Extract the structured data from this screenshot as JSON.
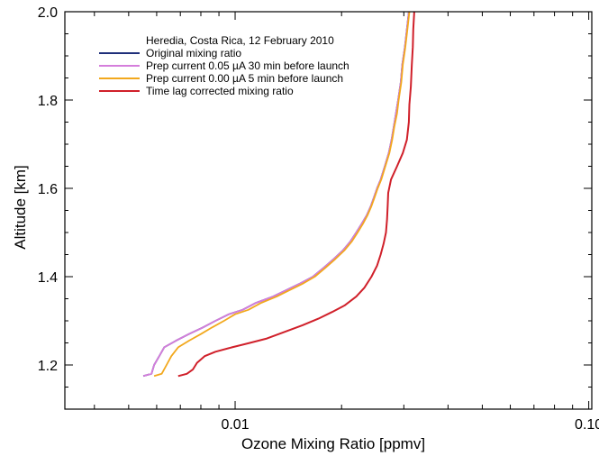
{
  "chart_data": {
    "type": "line",
    "title": "",
    "legend_title": "Heredia, Costa Rica, 12 February 2010",
    "xlabel": "Ozone Mixing Ratio [ppmv]",
    "ylabel": "Altitude [km]",
    "x_scale": "log",
    "xlim": [
      0.0033,
      0.102
    ],
    "ylim": [
      1.1,
      2.0
    ],
    "x_ticks": [
      {
        "value": 0.01,
        "label": "0.01"
      },
      {
        "value": 0.1,
        "label": "0.10"
      }
    ],
    "y_ticks": [
      {
        "value": 1.2,
        "label": "1.2"
      },
      {
        "value": 1.4,
        "label": "1.4"
      },
      {
        "value": 1.6,
        "label": "1.6"
      },
      {
        "value": 1.8,
        "label": "1.8"
      },
      {
        "value": 2.0,
        "label": "2.0"
      }
    ],
    "grid": false,
    "legend_position": "top-left",
    "series": [
      {
        "name": "Original mixing ratio",
        "color": "#1f2f7a",
        "points": [
          [
            0.0055,
            1.175
          ],
          [
            0.0058,
            1.18
          ],
          [
            0.0059,
            1.2
          ],
          [
            0.0061,
            1.22
          ],
          [
            0.0063,
            1.24
          ],
          [
            0.0068,
            1.255
          ],
          [
            0.0074,
            1.27
          ],
          [
            0.0081,
            1.285
          ],
          [
            0.0088,
            1.3
          ],
          [
            0.0096,
            1.315
          ],
          [
            0.0105,
            1.325
          ],
          [
            0.0114,
            1.34
          ],
          [
            0.0128,
            1.355
          ],
          [
            0.014,
            1.37
          ],
          [
            0.0153,
            1.385
          ],
          [
            0.0166,
            1.4
          ],
          [
            0.0178,
            1.42
          ],
          [
            0.019,
            1.44
          ],
          [
            0.0202,
            1.46
          ],
          [
            0.0212,
            1.48
          ],
          [
            0.022,
            1.5
          ],
          [
            0.0228,
            1.52
          ],
          [
            0.0236,
            1.54
          ],
          [
            0.0242,
            1.56
          ],
          [
            0.0247,
            1.58
          ],
          [
            0.0252,
            1.6
          ],
          [
            0.0258,
            1.62
          ],
          [
            0.0265,
            1.65
          ],
          [
            0.0272,
            1.68
          ],
          [
            0.0277,
            1.71
          ],
          [
            0.0281,
            1.74
          ],
          [
            0.0285,
            1.77
          ],
          [
            0.0289,
            1.8
          ],
          [
            0.0294,
            1.84
          ],
          [
            0.0297,
            1.88
          ],
          [
            0.0302,
            1.92
          ],
          [
            0.0306,
            1.96
          ],
          [
            0.031,
            2.0
          ]
        ]
      },
      {
        "name": "Prep current 0.05 µA 30 min before launch",
        "color": "#d57edc",
        "points": [
          [
            0.0055,
            1.175
          ],
          [
            0.0058,
            1.18
          ],
          [
            0.0059,
            1.2
          ],
          [
            0.0061,
            1.22
          ],
          [
            0.0063,
            1.24
          ],
          [
            0.0068,
            1.255
          ],
          [
            0.0074,
            1.27
          ],
          [
            0.0081,
            1.285
          ],
          [
            0.0088,
            1.3
          ],
          [
            0.0096,
            1.315
          ],
          [
            0.0105,
            1.325
          ],
          [
            0.0114,
            1.34
          ],
          [
            0.0128,
            1.355
          ],
          [
            0.014,
            1.37
          ],
          [
            0.0153,
            1.385
          ],
          [
            0.0166,
            1.4
          ],
          [
            0.0178,
            1.42
          ],
          [
            0.019,
            1.44
          ],
          [
            0.0202,
            1.46
          ],
          [
            0.0212,
            1.48
          ],
          [
            0.022,
            1.5
          ],
          [
            0.0228,
            1.52
          ],
          [
            0.0236,
            1.54
          ],
          [
            0.0242,
            1.56
          ],
          [
            0.0247,
            1.58
          ],
          [
            0.0252,
            1.6
          ],
          [
            0.0258,
            1.62
          ],
          [
            0.0265,
            1.65
          ],
          [
            0.0272,
            1.68
          ],
          [
            0.0277,
            1.71
          ],
          [
            0.0281,
            1.74
          ],
          [
            0.0285,
            1.77
          ],
          [
            0.0289,
            1.8
          ],
          [
            0.0294,
            1.84
          ],
          [
            0.0297,
            1.88
          ],
          [
            0.0302,
            1.92
          ],
          [
            0.0306,
            1.96
          ],
          [
            0.031,
            2.0
          ]
        ]
      },
      {
        "name": "Prep current 0.00 µA 5 min before launch",
        "color": "#f2a81d",
        "points": [
          [
            0.0059,
            1.175
          ],
          [
            0.0062,
            1.18
          ],
          [
            0.0064,
            1.2
          ],
          [
            0.0066,
            1.22
          ],
          [
            0.0069,
            1.24
          ],
          [
            0.0074,
            1.255
          ],
          [
            0.008,
            1.27
          ],
          [
            0.0086,
            1.285
          ],
          [
            0.0093,
            1.3
          ],
          [
            0.01,
            1.315
          ],
          [
            0.0109,
            1.325
          ],
          [
            0.0118,
            1.34
          ],
          [
            0.0131,
            1.355
          ],
          [
            0.0143,
            1.37
          ],
          [
            0.0156,
            1.385
          ],
          [
            0.0168,
            1.4
          ],
          [
            0.018,
            1.42
          ],
          [
            0.0192,
            1.44
          ],
          [
            0.0204,
            1.46
          ],
          [
            0.0214,
            1.48
          ],
          [
            0.0222,
            1.5
          ],
          [
            0.023,
            1.52
          ],
          [
            0.0237,
            1.54
          ],
          [
            0.0243,
            1.56
          ],
          [
            0.0248,
            1.58
          ],
          [
            0.0253,
            1.6
          ],
          [
            0.0259,
            1.62
          ],
          [
            0.0266,
            1.65
          ],
          [
            0.0273,
            1.68
          ],
          [
            0.0278,
            1.71
          ],
          [
            0.0282,
            1.74
          ],
          [
            0.0287,
            1.77
          ],
          [
            0.029,
            1.8
          ],
          [
            0.0295,
            1.84
          ],
          [
            0.0298,
            1.88
          ],
          [
            0.0303,
            1.92
          ],
          [
            0.0307,
            1.96
          ],
          [
            0.0311,
            2.0
          ]
        ]
      },
      {
        "name": "Time lag corrected mixing ratio",
        "color": "#d0202a",
        "points": [
          [
            0.0069,
            1.175
          ],
          [
            0.0073,
            1.18
          ],
          [
            0.0076,
            1.19
          ],
          [
            0.0078,
            1.205
          ],
          [
            0.0082,
            1.22
          ],
          [
            0.0088,
            1.23
          ],
          [
            0.0098,
            1.24
          ],
          [
            0.011,
            1.25
          ],
          [
            0.0123,
            1.26
          ],
          [
            0.0138,
            1.275
          ],
          [
            0.0155,
            1.29
          ],
          [
            0.0172,
            1.305
          ],
          [
            0.0188,
            1.32
          ],
          [
            0.0204,
            1.335
          ],
          [
            0.022,
            1.355
          ],
          [
            0.0232,
            1.375
          ],
          [
            0.0243,
            1.4
          ],
          [
            0.0252,
            1.425
          ],
          [
            0.0258,
            1.45
          ],
          [
            0.0263,
            1.475
          ],
          [
            0.0267,
            1.5
          ],
          [
            0.0269,
            1.53
          ],
          [
            0.027,
            1.56
          ],
          [
            0.0271,
            1.59
          ],
          [
            0.0276,
            1.62
          ],
          [
            0.0287,
            1.65
          ],
          [
            0.0298,
            1.68
          ],
          [
            0.0306,
            1.71
          ],
          [
            0.031,
            1.75
          ],
          [
            0.0311,
            1.79
          ],
          [
            0.0314,
            1.83
          ],
          [
            0.0316,
            1.88
          ],
          [
            0.0318,
            1.92
          ],
          [
            0.0319,
            1.96
          ],
          [
            0.0321,
            2.0
          ]
        ]
      }
    ]
  }
}
